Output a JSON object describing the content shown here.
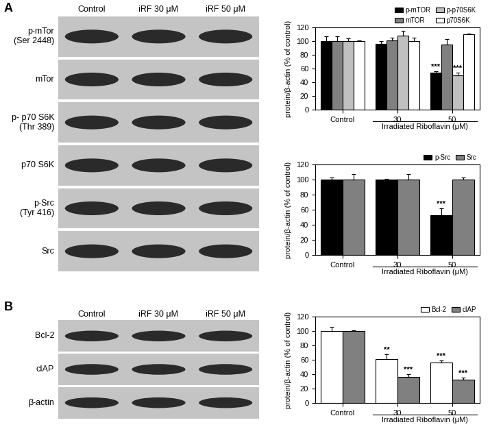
{
  "chart_data": [
    {
      "type": "bar",
      "ylabel": "protein/β-actin (% of control)",
      "xlabel": "Irradiated Riboflavin (μM)",
      "categories": [
        "Control",
        "30",
        "50"
      ],
      "ylim": [
        0,
        120
      ],
      "yticks": [
        0,
        20,
        40,
        60,
        80,
        100,
        120
      ],
      "grid": false,
      "legend": "upper right",
      "series": [
        {
          "name": "p-mTOR",
          "color": "#000000",
          "values": [
            100,
            96,
            54
          ],
          "error": [
            7,
            4,
            2
          ],
          "significance": [
            null,
            null,
            "***"
          ]
        },
        {
          "name": "mTOR",
          "color": "#808080",
          "values": [
            100,
            101,
            95
          ],
          "error": [
            7,
            4,
            8
          ],
          "significance": [
            null,
            null,
            null
          ]
        },
        {
          "name": "p-p70S6K",
          "color": "#c0c0c0",
          "values": [
            100,
            108,
            50
          ],
          "error": [
            4,
            7,
            4
          ],
          "significance": [
            null,
            null,
            "***"
          ]
        },
        {
          "name": "p70S6K",
          "color": "#ffffff",
          "values": [
            100,
            100,
            110
          ],
          "error": [
            1,
            5,
            1
          ],
          "significance": [
            null,
            null,
            null
          ]
        }
      ]
    },
    {
      "type": "bar",
      "ylabel": "protein/β-actin (% of control)",
      "xlabel": "Irradiated Riboflavin (μM)",
      "categories": [
        "Control",
        "30",
        "50"
      ],
      "ylim": [
        0,
        120
      ],
      "yticks": [
        0,
        20,
        40,
        60,
        80,
        100,
        120
      ],
      "grid": false,
      "legend": "upper right",
      "series": [
        {
          "name": "p-Src",
          "color": "#000000",
          "values": [
            100,
            100,
            53
          ],
          "error": [
            3,
            1,
            9
          ],
          "significance": [
            null,
            null,
            "***"
          ]
        },
        {
          "name": "Src",
          "color": "#808080",
          "values": [
            100,
            100,
            100
          ],
          "error": [
            7,
            7,
            3
          ],
          "significance": [
            null,
            null,
            null
          ]
        }
      ]
    },
    {
      "type": "bar",
      "ylabel": "protein/β-actin (% of control)",
      "xlabel": "Irradiated Riboflavin (μM)",
      "categories": [
        "Control",
        "30",
        "50"
      ],
      "ylim": [
        0,
        120
      ],
      "yticks": [
        0,
        20,
        40,
        60,
        80,
        100,
        120
      ],
      "grid": false,
      "legend": "upper right",
      "series": [
        {
          "name": "Bcl-2",
          "color": "#ffffff",
          "values": [
            100,
            61,
            56
          ],
          "error": [
            6,
            7,
            3
          ],
          "significance": [
            null,
            "**",
            "***"
          ]
        },
        {
          "name": "cIAP",
          "color": "#808080",
          "values": [
            100,
            36,
            32
          ],
          "error": [
            1,
            4,
            3
          ],
          "significance": [
            null,
            "***",
            "***"
          ]
        }
      ]
    }
  ],
  "blots": [
    {
      "panel": "A",
      "lanes": [
        "Control",
        "iRF 30 μM",
        "iRF 50 μM"
      ],
      "rows": [
        [
          "p-mTor",
          "(Ser 2448)"
        ],
        [
          "mTor"
        ],
        [
          "p- p70 S6K",
          "(Thr 389)"
        ],
        [
          "p70 S6K"
        ],
        [
          "p-Src",
          "(Tyr 416)"
        ],
        [
          "Src"
        ]
      ]
    },
    {
      "panel": "B",
      "lanes": [
        "Control",
        "iRF 30 μM",
        "iRF 50 μM"
      ],
      "rows": [
        [
          "Bcl-2"
        ],
        [
          "cIAP"
        ],
        [
          "β-actin"
        ]
      ]
    }
  ]
}
